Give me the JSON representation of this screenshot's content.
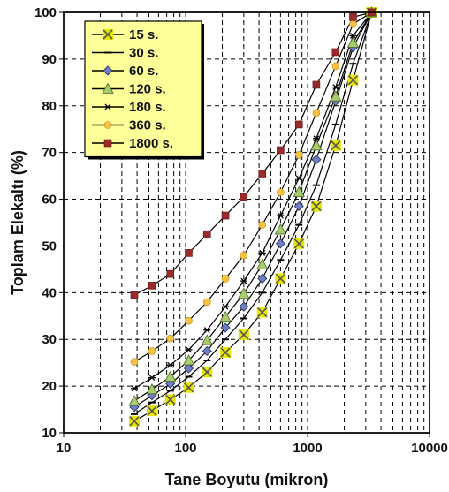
{
  "chart_data": {
    "type": "line",
    "xscale": "log",
    "xlabel": "Tane Boyutu (mikron)",
    "ylabel": "Toplam Elekaltı (%)",
    "xlim": [
      10,
      10000
    ],
    "ylim": [
      10,
      100
    ],
    "xticks": [
      "10",
      "100",
      "1000",
      "10000"
    ],
    "yticks": [
      "10",
      "20",
      "30",
      "40",
      "50",
      "60",
      "70",
      "80",
      "90",
      "100"
    ],
    "grid": true,
    "legend_position": "top-left",
    "x": [
      38,
      53,
      75,
      106,
      150,
      212,
      300,
      425,
      600,
      850,
      1180,
      1700,
      2360,
      3350
    ],
    "series": [
      {
        "name": "15 s.",
        "marker": "x-box",
        "color": "#e6e600",
        "values": [
          12.5,
          14.7,
          17.1,
          19.7,
          23.0,
          27.2,
          31.0,
          35.8,
          43.0,
          50.5,
          58.5,
          71.5,
          85.5,
          100
        ]
      },
      {
        "name": "30 s.",
        "marker": "dash",
        "color": "#000000",
        "values": [
          14.0,
          16.5,
          19.0,
          22.0,
          25.5,
          30.0,
          34.5,
          40.0,
          47.0,
          54.5,
          63.0,
          76.0,
          89.0,
          100
        ]
      },
      {
        "name": "60 s.",
        "marker": "diamond",
        "color": "#6e7fc4",
        "values": [
          15.5,
          18.0,
          20.5,
          23.8,
          27.5,
          32.5,
          37.0,
          43.0,
          50.5,
          58.5,
          68.5,
          81.0,
          92.5,
          100
        ]
      },
      {
        "name": "120 s.",
        "marker": "triangle",
        "color": "#a8cc6e",
        "values": [
          16.8,
          19.3,
          22.0,
          25.5,
          29.8,
          34.8,
          39.8,
          46.0,
          53.5,
          61.5,
          71.5,
          82.0,
          93.5,
          100
        ]
      },
      {
        "name": "180 s.",
        "marker": "asterisk",
        "color": "#000000",
        "values": [
          19.5,
          21.8,
          24.5,
          27.8,
          32.0,
          37.0,
          42.5,
          48.5,
          56.5,
          64.5,
          73.0,
          84.0,
          95.0,
          100
        ]
      },
      {
        "name": "360 s.",
        "marker": "circle",
        "color": "#f5c242",
        "values": [
          25.2,
          27.5,
          30.2,
          34.0,
          38.0,
          43.0,
          48.0,
          54.5,
          61.5,
          69.5,
          78.5,
          88.5,
          97.5,
          100
        ]
      },
      {
        "name": "1800 s.",
        "marker": "square",
        "color": "#9b2a2a",
        "values": [
          39.5,
          41.5,
          44.0,
          48.5,
          52.5,
          56.5,
          60.5,
          65.5,
          70.5,
          76.0,
          84.5,
          91.5,
          99.0,
          100
        ]
      }
    ]
  }
}
